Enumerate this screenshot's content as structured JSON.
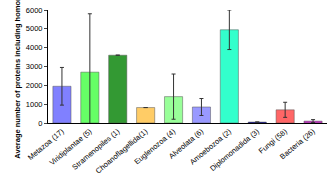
{
  "chart_data": {
    "type": "bar",
    "y_label": "Average number of proteins including homorepeats",
    "categories": [
      "Metazoa (17)",
      "Viridiplantae (5)",
      "Stramenopiles (1)",
      "Choanoflagellida(1)",
      "Euglenozoa (4)",
      "Alveolata (6)",
      "Amoebozoa (2)",
      "Diplomonadida (3)",
      "Fungi (58)",
      "Bacteria (26)"
    ],
    "values": [
      1950,
      2700,
      3600,
      820,
      1400,
      850,
      4950,
      50,
      700,
      100
    ],
    "errors": [
      1000,
      3100,
      null,
      null,
      1200,
      450,
      1050,
      null,
      400,
      80
    ],
    "colors": [
      "#8080ff",
      "#66ff66",
      "#339933",
      "#ffcc66",
      "#99ff99",
      "#9999ff",
      "#33ffcc",
      "#000099",
      "#ff6666",
      "#cc33cc"
    ],
    "ylim": [
      0,
      6000
    ],
    "yticks": [
      0,
      1000,
      2000,
      3000,
      4000,
      5000,
      6000
    ],
    "grid": false
  }
}
